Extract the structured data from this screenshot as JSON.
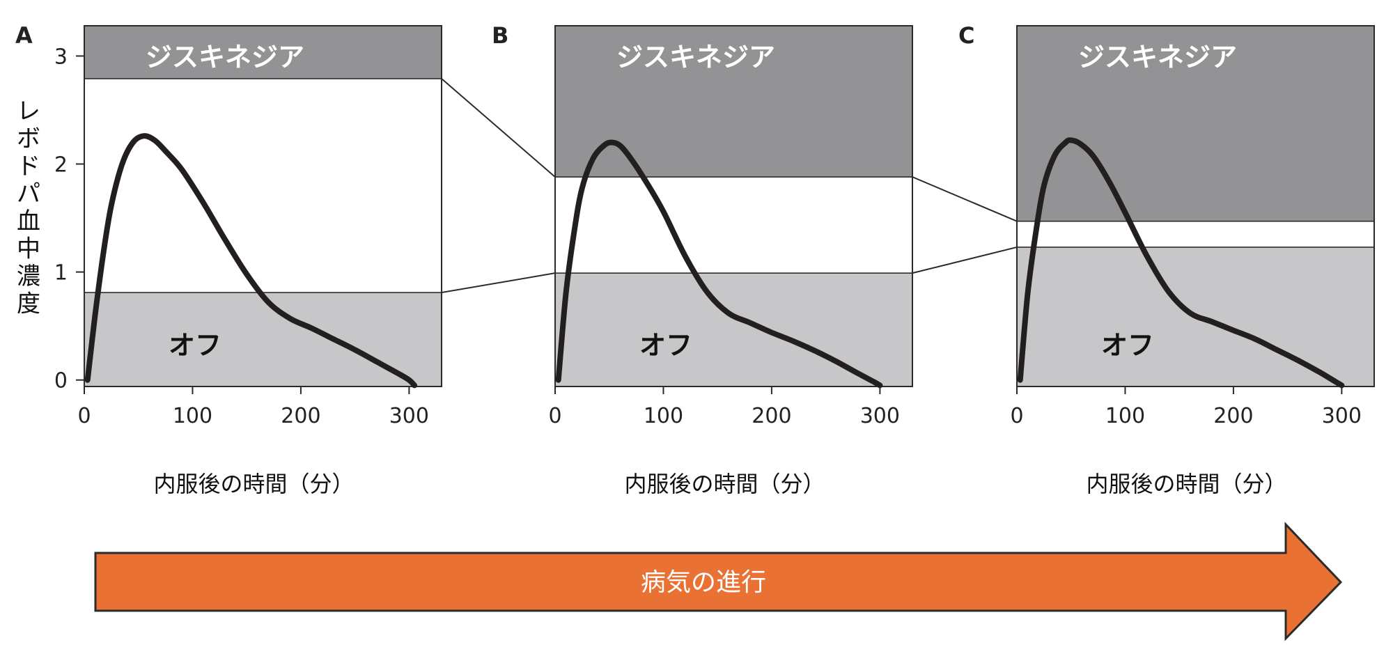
{
  "colors": {
    "dyskinesia_zone": "#939396",
    "off_zone": "#c7c7c9",
    "therapeutic_window": "#ffffff",
    "curve": "#231f20",
    "axis": "#2a2a2a",
    "arrow_fill": "#e97133",
    "arrow_stroke": "#2b2b2b"
  },
  "y_axis": {
    "label": "レボドパ血中濃度",
    "ticks": [
      "0",
      "1",
      "2",
      "3"
    ],
    "range": [
      -0.06,
      3.28
    ]
  },
  "x_axis": {
    "range": [
      0,
      330
    ],
    "ticks": [
      "0",
      "100",
      "200",
      "300"
    ]
  },
  "chart_data": [
    {
      "panel": "A",
      "type": "line",
      "xlabel": "内服後の時間（分）",
      "ylabel": "レボドパ血中濃度",
      "dyskinesia_label": "ジスキネジア",
      "off_label": "オフ",
      "dyskinesia_threshold": 2.79,
      "off_threshold": 0.81,
      "series": [
        {
          "x": [
            3,
            10,
            18,
            25,
            35,
            45,
            55,
            65,
            75,
            90,
            110,
            130,
            150,
            170,
            190,
            210,
            230,
            250,
            270,
            290,
            300,
            305
          ],
          "y": [
            0,
            0.6,
            1.2,
            1.62,
            2.0,
            2.2,
            2.26,
            2.22,
            2.12,
            1.95,
            1.64,
            1.3,
            0.98,
            0.72,
            0.57,
            0.48,
            0.38,
            0.28,
            0.17,
            0.06,
            0.0,
            -0.05
          ]
        }
      ]
    },
    {
      "panel": "B",
      "type": "line",
      "xlabel": "内服後の時間（分）",
      "ylabel": "",
      "dyskinesia_label": "ジスキネジア",
      "off_label": "オフ",
      "dyskinesia_threshold": 1.88,
      "off_threshold": 0.99,
      "series": [
        {
          "x": [
            3,
            10,
            18,
            25,
            35,
            45,
            52,
            60,
            70,
            85,
            100,
            120,
            140,
            160,
            180,
            200,
            220,
            240,
            260,
            280,
            295,
            300
          ],
          "y": [
            0,
            0.8,
            1.4,
            1.78,
            2.05,
            2.17,
            2.2,
            2.17,
            2.05,
            1.82,
            1.56,
            1.15,
            0.82,
            0.62,
            0.53,
            0.44,
            0.36,
            0.27,
            0.17,
            0.06,
            -0.02,
            -0.05
          ]
        }
      ]
    },
    {
      "panel": "C",
      "type": "line",
      "xlabel": "内服後の時間（分）",
      "ylabel": "",
      "dyskinesia_label": "ジスキネジア",
      "off_label": "オフ",
      "dyskinesia_threshold": 1.47,
      "off_threshold": 1.23,
      "series": [
        {
          "x": [
            3,
            10,
            18,
            25,
            35,
            45,
            50,
            58,
            70,
            85,
            100,
            120,
            140,
            160,
            180,
            200,
            220,
            240,
            260,
            280,
            295,
            300
          ],
          "y": [
            0,
            0.8,
            1.4,
            1.8,
            2.08,
            2.2,
            2.22,
            2.19,
            2.08,
            1.84,
            1.55,
            1.15,
            0.82,
            0.62,
            0.54,
            0.46,
            0.38,
            0.28,
            0.18,
            0.07,
            -0.02,
            -0.05
          ]
        }
      ]
    }
  ],
  "progression_arrow": {
    "label": "病気の進行"
  }
}
